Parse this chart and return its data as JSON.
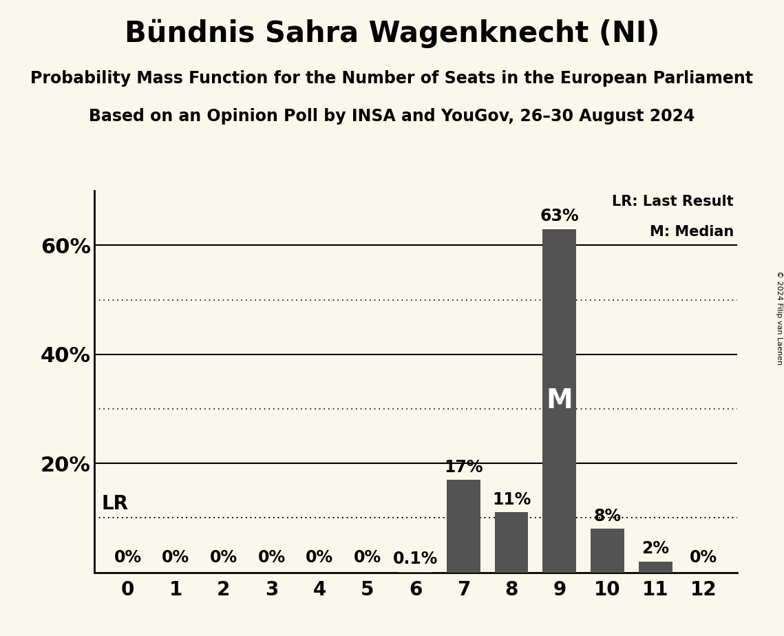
{
  "title": "Bündnis Sahra Wagenknecht (NI)",
  "subtitle1": "Probability Mass Function for the Number of Seats in the European Parliament",
  "subtitle2": "Based on an Opinion Poll by INSA and YouGov, 26–30 August 2024",
  "copyright": "© 2024 Filip van Laenen",
  "categories": [
    0,
    1,
    2,
    3,
    4,
    5,
    6,
    7,
    8,
    9,
    10,
    11,
    12
  ],
  "values": [
    0.0,
    0.0,
    0.0,
    0.0,
    0.0,
    0.0,
    0.1,
    17.0,
    11.0,
    63.0,
    8.0,
    2.0,
    0.0
  ],
  "bar_color": "#535353",
  "background_color": "#faf8ec",
  "label_texts": [
    "0%",
    "0%",
    "0%",
    "0%",
    "0%",
    "0%",
    "0.1%",
    "17%",
    "11%",
    "63%",
    "8%",
    "2%",
    "0%"
  ],
  "lr_value": 10.0,
  "lr_label": "LR",
  "median_seat": 9,
  "median_label": "M",
  "ylim": [
    0,
    70
  ],
  "yticks_solid": [
    20,
    40,
    60
  ],
  "yticks_dotted": [
    10,
    30,
    50
  ],
  "legend_lr": "LR: Last Result",
  "legend_m": "M: Median",
  "title_fontsize": 30,
  "subtitle_fontsize": 17,
  "tick_fontsize": 20,
  "bar_label_fontsize": 17,
  "ytick_label_fontsize": 22,
  "median_label_fontsize": 28
}
